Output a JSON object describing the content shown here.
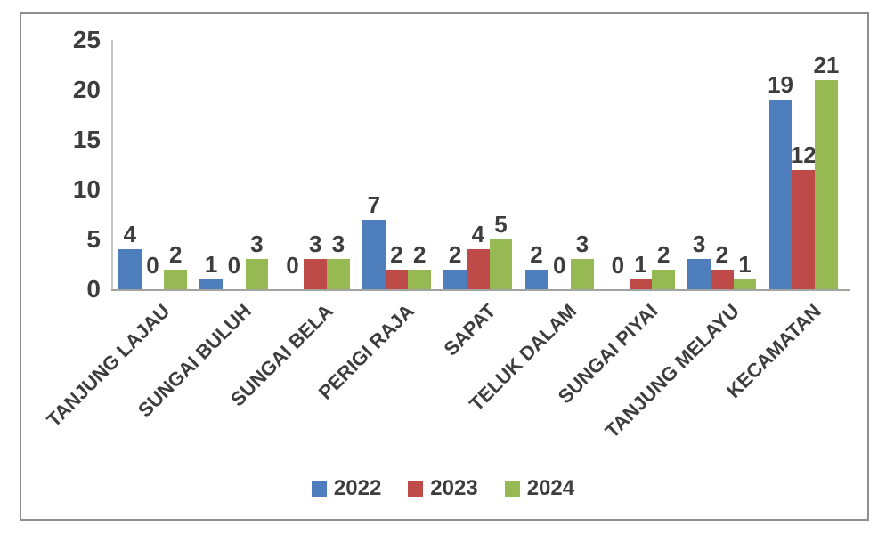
{
  "chart_data": {
    "type": "bar",
    "title": "",
    "xlabel": "",
    "ylabel": "",
    "categories": [
      "TANJUNG LAJAU",
      "SUNGAI BULUH",
      "SUNGAI BELA",
      "PERIGI RAJA",
      "SAPAT",
      "TELUK DALAM",
      "SUNGAI PIYAI",
      "TANJUNG MELAYU",
      "KECAMATAN"
    ],
    "series": [
      {
        "name": "2022",
        "color": "#4E7FBC",
        "values": [
          4,
          1,
          0,
          7,
          2,
          2,
          0,
          3,
          19
        ]
      },
      {
        "name": "2023",
        "color": "#BF4B48",
        "values": [
          0,
          0,
          3,
          2,
          4,
          0,
          1,
          2,
          12
        ]
      },
      {
        "name": "2024",
        "color": "#97B954",
        "values": [
          2,
          3,
          3,
          2,
          5,
          3,
          2,
          1,
          21
        ]
      }
    ],
    "data_labels_shown": true,
    "ylim": [
      0,
      25
    ],
    "yticks": [
      0,
      5,
      10,
      15,
      20,
      25
    ],
    "grid": false,
    "legend_position": "bottom",
    "category_label_rotation_deg": 45
  },
  "colors": {
    "frame_border": "#8e8e8e",
    "axis_line": "#b3b3b3",
    "text": "#3d3d3d"
  }
}
